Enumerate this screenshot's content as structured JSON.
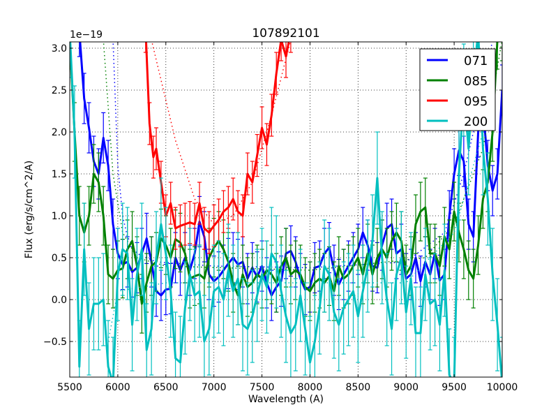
{
  "chart_data": {
    "type": "line",
    "title": "107892101",
    "xlabel": "Wavelength (A)",
    "ylabel": "Flux (erg/s/cm^2/A)",
    "offset_text": "1e−19",
    "xlim": [
      5500,
      10000
    ],
    "ylim": [
      -0.925,
      3.075
    ],
    "xticks": [
      5500,
      6000,
      6500,
      7000,
      7500,
      8000,
      8500,
      9000,
      9500,
      10000
    ],
    "xtick_labels": [
      "5500",
      "6000",
      "6500",
      "7000",
      "7500",
      "8000",
      "8500",
      "9000",
      "9500",
      "10000"
    ],
    "yticks": [
      -0.5,
      0.0,
      0.5,
      1.0,
      1.5,
      2.0,
      2.5,
      3.0
    ],
    "ytick_labels": [
      "−0.5",
      "0.0",
      "0.5",
      "1.0",
      "1.5",
      "2.0",
      "2.5",
      "3.0"
    ],
    "grid": true,
    "legend_position": "top-right",
    "series": [
      {
        "name": "071",
        "color": "#0000ff",
        "yerr": 0.3,
        "x": [
          5550,
          5600,
          5650,
          5700,
          5750,
          5800,
          5850,
          5900,
          5950,
          6000,
          6050,
          6100,
          6150,
          6200,
          6250,
          6300,
          6350,
          6400,
          6450,
          6500,
          6550,
          6600,
          6650,
          6700,
          6750,
          6800,
          6850,
          6900,
          6950,
          7000,
          7050,
          7100,
          7150,
          7200,
          7250,
          7300,
          7350,
          7400,
          7450,
          7500,
          7550,
          7600,
          7650,
          7700,
          7750,
          7800,
          7850,
          7900,
          7950,
          8000,
          8050,
          8100,
          8150,
          8200,
          8250,
          8300,
          8350,
          8400,
          8450,
          8500,
          8550,
          8600,
          8650,
          8700,
          8750,
          8800,
          8850,
          8900,
          8950,
          9000,
          9050,
          9100,
          9150,
          9200,
          9250,
          9300,
          9350,
          9400,
          9450,
          9500,
          9550,
          9600,
          9650,
          9700,
          9750,
          9800,
          9850,
          9900,
          9950,
          10000
        ],
        "y": [
          3.5,
          3.2,
          2.4,
          2.05,
          1.65,
          1.5,
          1.93,
          1.6,
          0.9,
          0.55,
          0.42,
          0.45,
          0.33,
          0.38,
          0.55,
          0.73,
          0.45,
          0.1,
          0.05,
          0.12,
          0.13,
          0.5,
          0.35,
          0.5,
          0.35,
          0.55,
          0.93,
          0.75,
          0.3,
          0.22,
          0.27,
          0.35,
          0.43,
          0.5,
          0.42,
          0.45,
          0.25,
          0.38,
          0.27,
          0.4,
          0.2,
          0.05,
          0.15,
          0.22,
          0.55,
          0.58,
          0.45,
          0.25,
          0.12,
          0.15,
          0.38,
          0.4,
          0.55,
          0.62,
          0.35,
          0.18,
          0.3,
          0.4,
          0.5,
          0.6,
          0.8,
          0.65,
          0.4,
          0.38,
          0.65,
          0.85,
          0.9,
          0.55,
          0.6,
          0.25,
          0.3,
          0.5,
          0.22,
          0.45,
          0.3,
          0.55,
          0.23,
          0.3,
          1.0,
          1.5,
          1.78,
          1.65,
          0.9,
          0.75,
          2.0,
          2.3,
          1.6,
          1.3,
          1.5,
          2.5
        ],
        "fit_x": [
          5950,
          6000,
          6050,
          6100,
          6200,
          6400,
          7000,
          8000,
          9000,
          9400,
          9600,
          9800,
          9900
        ],
        "fit_y": [
          3.1,
          1.6,
          1.0,
          0.75,
          0.55,
          0.45,
          0.4,
          0.38,
          0.45,
          0.8,
          1.5,
          2.5,
          3.1
        ]
      },
      {
        "name": "085",
        "color": "#008000",
        "yerr": 0.35,
        "x": [
          5500,
          5550,
          5600,
          5650,
          5700,
          5750,
          5800,
          5850,
          5900,
          5950,
          6000,
          6050,
          6100,
          6150,
          6200,
          6250,
          6300,
          6350,
          6400,
          6450,
          6500,
          6550,
          6600,
          6650,
          6700,
          6750,
          6800,
          6850,
          6900,
          6950,
          7000,
          7050,
          7100,
          7150,
          7200,
          7250,
          7300,
          7350,
          7400,
          7450,
          7500,
          7550,
          7600,
          7650,
          7700,
          7750,
          7800,
          7850,
          7900,
          7950,
          8000,
          8050,
          8100,
          8150,
          8200,
          8250,
          8300,
          8350,
          8400,
          8450,
          8500,
          8550,
          8600,
          8650,
          8700,
          8750,
          8800,
          8850,
          8900,
          8950,
          9000,
          9050,
          9100,
          9150,
          9200,
          9250,
          9300,
          9350,
          9400,
          9450,
          9500,
          9550,
          9600,
          9650,
          9700,
          9750,
          9800,
          9850,
          9900,
          9950,
          10000
        ],
        "y": [
          3.1,
          2.0,
          1.0,
          0.8,
          1.0,
          1.5,
          1.4,
          1.0,
          0.3,
          0.25,
          0.35,
          0.37,
          0.6,
          0.7,
          0.4,
          -0.05,
          0.2,
          0.4,
          0.45,
          0.73,
          0.65,
          0.5,
          0.72,
          0.68,
          0.55,
          0.25,
          0.28,
          0.3,
          0.25,
          0.5,
          0.62,
          0.7,
          0.6,
          0.45,
          0.2,
          0.05,
          0.3,
          0.15,
          0.2,
          0.3,
          0.25,
          0.35,
          0.3,
          0.2,
          0.4,
          0.5,
          0.3,
          0.35,
          0.3,
          0.15,
          0.1,
          0.2,
          0.25,
          0.2,
          0.28,
          0.1,
          0.4,
          0.25,
          0.3,
          0.4,
          0.5,
          0.3,
          0.55,
          0.3,
          0.5,
          0.6,
          0.5,
          0.7,
          0.8,
          0.7,
          0.3,
          0.4,
          0.9,
          1.05,
          1.1,
          0.55,
          0.55,
          0.4,
          0.75,
          0.6,
          1.05,
          0.8,
          0.6,
          0.35,
          0.25,
          0.65,
          1.2,
          1.4,
          2.0,
          3.1,
          3.2
        ],
        "fit_x": [
          5850,
          5950,
          6050,
          6200,
          6500,
          8000,
          9200,
          9500,
          9800,
          10000
        ],
        "fit_y": [
          3.1,
          1.5,
          0.8,
          0.5,
          0.4,
          0.35,
          0.5,
          0.9,
          1.8,
          3.1
        ]
      },
      {
        "name": "095",
        "color": "#ff0000",
        "yerr": 0.25,
        "x": [
          6290,
          6330,
          6370,
          6400,
          6450,
          6500,
          6550,
          6600,
          6650,
          6700,
          6750,
          6800,
          6850,
          6900,
          6950,
          7000,
          7050,
          7100,
          7150,
          7200,
          7250,
          7300,
          7350,
          7400,
          7450,
          7500,
          7550,
          7600,
          7650,
          7700,
          7750,
          7800
        ],
        "y": [
          3.2,
          2.1,
          1.7,
          1.8,
          1.4,
          1.0,
          1.15,
          0.85,
          0.88,
          0.9,
          0.92,
          0.9,
          1.15,
          0.85,
          0.8,
          0.88,
          0.95,
          1.05,
          1.1,
          1.2,
          1.05,
          1.0,
          1.5,
          1.4,
          1.72,
          2.05,
          1.85,
          2.2,
          2.7,
          3.1,
          2.9,
          3.2
        ],
        "fit_x": [
          6350,
          6600,
          6800,
          7000,
          7200,
          7400,
          7600,
          7800
        ],
        "fit_y": [
          3.1,
          1.9,
          1.2,
          0.9,
          1.0,
          1.4,
          2.2,
          3.1
        ]
      },
      {
        "name": "200",
        "color": "#00bfbf",
        "yerr": 0.55,
        "x": [
          5500,
          5550,
          5600,
          5650,
          5700,
          5750,
          5800,
          5850,
          5900,
          5950,
          6000,
          6050,
          6100,
          6150,
          6200,
          6250,
          6300,
          6350,
          6400,
          6450,
          6500,
          6550,
          6600,
          6650,
          6700,
          6750,
          6800,
          6850,
          6900,
          6950,
          7000,
          7050,
          7100,
          7150,
          7200,
          7250,
          7300,
          7350,
          7400,
          7450,
          7500,
          7550,
          7600,
          7650,
          7700,
          7750,
          7800,
          7850,
          7900,
          7950,
          8000,
          8050,
          8100,
          8150,
          8200,
          8250,
          8300,
          8350,
          8400,
          8450,
          8500,
          8550,
          8600,
          8650,
          8700,
          8750,
          8800,
          8850,
          8900,
          8950,
          9000,
          9050,
          9100,
          9150,
          9200,
          9250,
          9300,
          9350,
          9400,
          9450,
          9500,
          9550,
          9600,
          9650,
          9700,
          9750,
          9800,
          9850,
          9900,
          9950,
          10000
        ],
        "y": [
          3.2,
          2.0,
          -0.8,
          0.6,
          -0.35,
          -0.05,
          -0.05,
          0.0,
          -0.8,
          -1.0,
          0.3,
          0.6,
          0.55,
          -0.3,
          0.3,
          0.6,
          -0.6,
          -0.35,
          0.5,
          0.9,
          0.55,
          0.1,
          -0.7,
          -0.75,
          -0.1,
          0.3,
          0.05,
          0.1,
          -0.5,
          -0.35,
          0.1,
          0.15,
          0.0,
          0.35,
          0.1,
          0.25,
          -0.3,
          -0.35,
          -0.2,
          0.05,
          0.3,
          0.15,
          0.55,
          0.45,
          0.1,
          -0.2,
          -0.4,
          -0.3,
          0.05,
          -0.35,
          -0.75,
          -0.5,
          -0.1,
          0.4,
          0.3,
          -0.15,
          -0.3,
          -0.1,
          0.0,
          0.1,
          -0.2,
          0.1,
          0.4,
          0.7,
          1.45,
          0.5,
          0.0,
          -0.35,
          0.3,
          0.5,
          -0.15,
          0.25,
          -0.4,
          -0.4,
          0.3,
          -0.05,
          0.0,
          -0.3,
          0.35,
          -0.9,
          -1.0,
          1.5,
          2.5,
          1.8,
          2.6,
          3.2,
          1.8,
          1.2,
          0.3,
          -0.3,
          -1.0
        ],
        "fit_x": [
          5900,
          6000,
          6500,
          9000,
          9500,
          9800
        ],
        "fit_y": [
          -0.5,
          0.1,
          0.2,
          0.2,
          0.8,
          2.0
        ]
      }
    ]
  }
}
